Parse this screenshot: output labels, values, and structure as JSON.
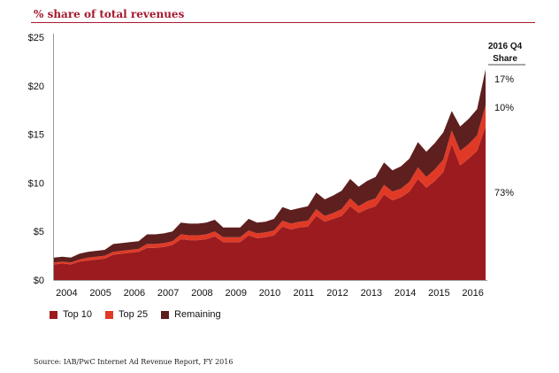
{
  "title": "% share of total revenues",
  "source": "Source: IAB/PwC Internet Ad Revenue Report, FY 2016",
  "chart_data": {
    "type": "area",
    "stacked": true,
    "x_labels": [
      "2004",
      "2005",
      "2006",
      "2007",
      "2008",
      "2009",
      "2010",
      "2011",
      "2012",
      "2013",
      "2014",
      "2015",
      "2016"
    ],
    "x_quarters": [
      "2004 Q1",
      "2004 Q2",
      "2004 Q3",
      "2004 Q4",
      "2005 Q1",
      "2005 Q2",
      "2005 Q3",
      "2005 Q4",
      "2006 Q1",
      "2006 Q2",
      "2006 Q3",
      "2006 Q4",
      "2007 Q1",
      "2007 Q2",
      "2007 Q3",
      "2007 Q4",
      "2008 Q1",
      "2008 Q2",
      "2008 Q3",
      "2008 Q4",
      "2009 Q1",
      "2009 Q2",
      "2009 Q3",
      "2009 Q4",
      "2010 Q1",
      "2010 Q2",
      "2010 Q3",
      "2010 Q4",
      "2011 Q1",
      "2011 Q2",
      "2011 Q3",
      "2011 Q4",
      "2012 Q1",
      "2012 Q2",
      "2012 Q3",
      "2012 Q4",
      "2013 Q1",
      "2013 Q2",
      "2013 Q3",
      "2013 Q4",
      "2014 Q1",
      "2014 Q2",
      "2014 Q3",
      "2014 Q4",
      "2015 Q1",
      "2015 Q2",
      "2015 Q3",
      "2015 Q4",
      "2016 Q1",
      "2016 Q2",
      "2016 Q3",
      "2016 Q4"
    ],
    "series": [
      {
        "name": "Top 10",
        "color": "#9b1b1f",
        "values": [
          1.6,
          1.7,
          1.6,
          1.9,
          2.0,
          2.1,
          2.2,
          2.6,
          2.7,
          2.8,
          2.9,
          3.3,
          3.3,
          3.4,
          3.6,
          4.2,
          4.1,
          4.1,
          4.2,
          4.5,
          3.9,
          3.9,
          3.9,
          4.6,
          4.3,
          4.4,
          4.6,
          5.5,
          5.2,
          5.4,
          5.5,
          6.6,
          6.0,
          6.3,
          6.6,
          7.6,
          6.9,
          7.3,
          7.6,
          8.8,
          8.2,
          8.5,
          9.1,
          10.4,
          9.5,
          10.2,
          11.1,
          14.0,
          11.8,
          12.5,
          13.3,
          15.8
        ]
      },
      {
        "name": "Top 25",
        "color": "#e03a27",
        "values": [
          0.2,
          0.2,
          0.2,
          0.2,
          0.3,
          0.3,
          0.3,
          0.3,
          0.3,
          0.3,
          0.3,
          0.4,
          0.4,
          0.4,
          0.4,
          0.5,
          0.5,
          0.5,
          0.5,
          0.5,
          0.5,
          0.5,
          0.5,
          0.5,
          0.5,
          0.5,
          0.5,
          0.6,
          0.6,
          0.6,
          0.6,
          0.7,
          0.6,
          0.6,
          0.7,
          0.8,
          0.7,
          0.8,
          0.8,
          1.0,
          0.9,
          0.9,
          1.0,
          1.2,
          1.1,
          1.2,
          1.3,
          1.4,
          1.5,
          1.5,
          1.6,
          2.2
        ]
      },
      {
        "name": "Remaining",
        "color": "#5e1f1f",
        "values": [
          0.5,
          0.5,
          0.5,
          0.6,
          0.6,
          0.6,
          0.6,
          0.8,
          0.8,
          0.8,
          0.8,
          1.0,
          1.0,
          1.0,
          1.0,
          1.2,
          1.2,
          1.2,
          1.2,
          1.2,
          1.0,
          1.0,
          1.0,
          1.2,
          1.1,
          1.1,
          1.2,
          1.4,
          1.4,
          1.4,
          1.5,
          1.7,
          1.7,
          1.8,
          1.9,
          2.0,
          2.0,
          2.1,
          2.2,
          2.3,
          2.2,
          2.3,
          2.4,
          2.6,
          2.6,
          2.7,
          2.8,
          2.0,
          2.5,
          2.6,
          2.7,
          3.7
        ]
      }
    ],
    "y_ticks": [
      "$25",
      "$20",
      "$15",
      "$10",
      "$5",
      "$0"
    ],
    "ylim": [
      0,
      25
    ],
    "share_title": "2016 Q4 Share",
    "share_labels": [
      {
        "series": "Remaining",
        "text": "17%"
      },
      {
        "series": "Top 25",
        "text": "10%"
      },
      {
        "series": "Top 10",
        "text": "73%"
      }
    ],
    "legend_position": "bottom-left",
    "grid": false
  }
}
